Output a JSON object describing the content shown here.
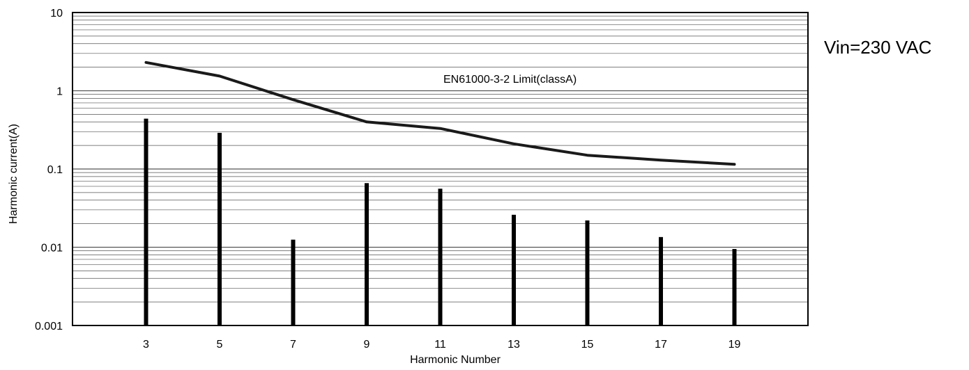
{
  "chart_data": {
    "type": "bar",
    "xlabel": "Harmonic  Number",
    "ylabel": "Harmonic  current(A)",
    "yscale": "log",
    "ylim": [
      0.001,
      10
    ],
    "xlim": [
      1,
      21
    ],
    "grid": true,
    "y_ticks": [
      {
        "value": 10,
        "label": "10"
      },
      {
        "value": 1,
        "label": "1"
      },
      {
        "value": 0.1,
        "label": "0.1"
      },
      {
        "value": 0.01,
        "label": "0.01"
      },
      {
        "value": 0.001,
        "label": "0.001"
      }
    ],
    "x_ticks": [
      {
        "value": 3,
        "label": "3"
      },
      {
        "value": 5,
        "label": "5"
      },
      {
        "value": 7,
        "label": "7"
      },
      {
        "value": 9,
        "label": "9"
      },
      {
        "value": 11,
        "label": "11"
      },
      {
        "value": 13,
        "label": "13"
      },
      {
        "value": 15,
        "label": "15"
      },
      {
        "value": 17,
        "label": "17"
      },
      {
        "value": 19,
        "label": "19"
      }
    ],
    "bars": {
      "x": [
        3,
        5,
        7,
        9,
        11,
        13,
        15,
        17,
        19
      ],
      "values": [
        0.44,
        0.29,
        0.0125,
        0.066,
        0.056,
        0.026,
        0.022,
        0.0135,
        0.0095
      ]
    },
    "limit_line": {
      "name": "EN61000-3-2 Limit(classA)",
      "x": [
        3,
        5,
        7,
        9,
        11,
        13,
        15,
        17,
        19
      ],
      "values": [
        2.3,
        1.54,
        0.77,
        0.4,
        0.33,
        0.21,
        0.15,
        0.13,
        0.115
      ]
    },
    "colors": {
      "bar": "#000000",
      "line": "#1a1a1a",
      "grid": "#555555",
      "frame": "#000000"
    }
  },
  "annotations": {
    "condition": "Vin=230 VAC"
  }
}
